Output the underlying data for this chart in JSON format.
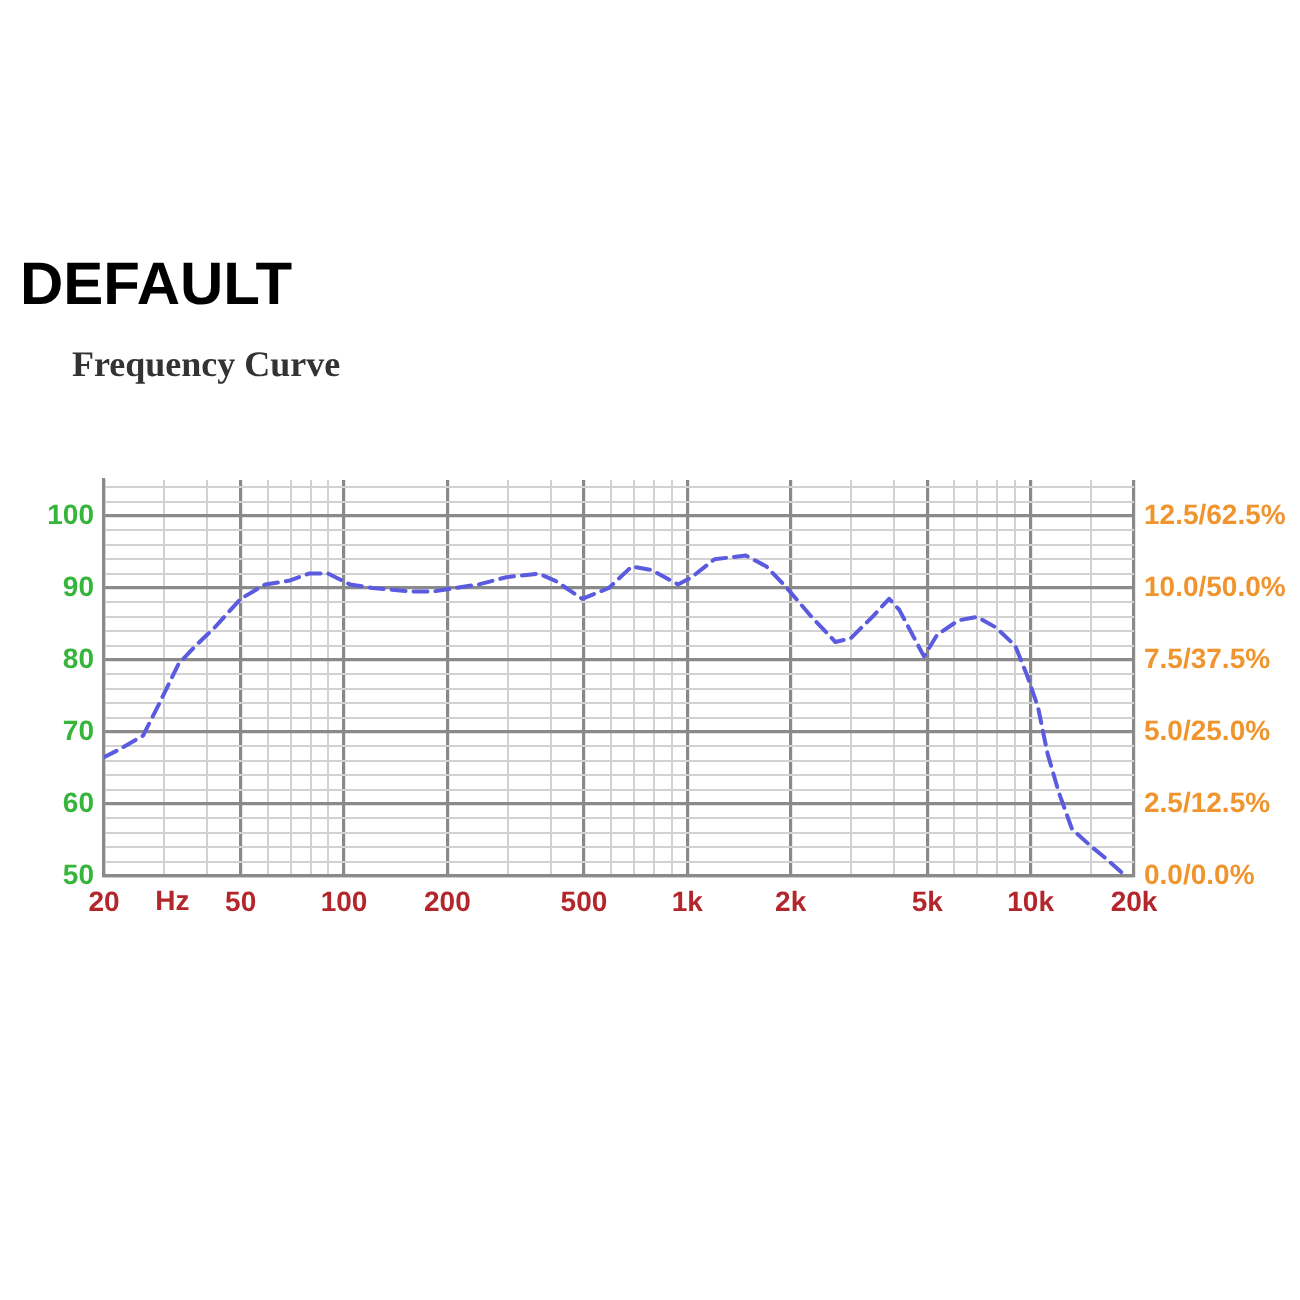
{
  "chart_data": {
    "type": "line",
    "title": "Frequency Curve",
    "annotations": [
      "DEFAULT"
    ],
    "xlabel": "Hz",
    "x": [
      20,
      22,
      26,
      29,
      33,
      37,
      42,
      50,
      59,
      69,
      79,
      90,
      104,
      121,
      158,
      181,
      211,
      247,
      297,
      369,
      413,
      494,
      591,
      689,
      787,
      940,
      1030,
      1200,
      1480,
      1700,
      1950,
      2300,
      2700,
      2990,
      3460,
      3870,
      4140,
      4890,
      5340,
      6160,
      6980,
      7930,
      9010,
      9740,
      10500,
      11200,
      12100,
      13200,
      15100,
      16500,
      18400
    ],
    "series": [
      {
        "color": "#5b5be0",
        "values": [
          66.5,
          67.5,
          69.5,
          74,
          79.5,
          82,
          84.5,
          88.5,
          90.5,
          91,
          92,
          92,
          90.5,
          90,
          89.5,
          89.5,
          90,
          90.5,
          91.5,
          92,
          91,
          88.5,
          90,
          93,
          92.5,
          90.5,
          91.5,
          94,
          94.5,
          93,
          90,
          86,
          82.5,
          83,
          86,
          88.5,
          87,
          80.5,
          83.5,
          85.5,
          86,
          84.5,
          82,
          78,
          73.5,
          67,
          61.5,
          56.5,
          54,
          52.5,
          50.5
        ]
      }
    ],
    "log": "x",
    "xlim": [
      20,
      20000
    ],
    "xticks": [
      20,
      {
        "value": 30,
        "label": null
      },
      {
        "value": 40,
        "label": null
      },
      50,
      {
        "value": 60,
        "label": null
      },
      {
        "value": 70,
        "label": null
      },
      {
        "value": 80,
        "label": null
      },
      {
        "value": 90,
        "label": null
      },
      100,
      200,
      {
        "value": 300,
        "label": null
      },
      {
        "value": 400,
        "label": null
      },
      500,
      {
        "value": 600,
        "label": null
      },
      {
        "value": 700,
        "label": null
      },
      {
        "value": 800,
        "label": null
      },
      {
        "value": 900,
        "label": null
      },
      {
        "value": 1000,
        "label": "1k"
      },
      {
        "value": 2000,
        "label": "2k"
      },
      {
        "value": 3000,
        "label": null
      },
      {
        "value": 4000,
        "label": null
      },
      {
        "value": 5000,
        "label": "5k"
      },
      {
        "value": 6000,
        "label": null
      },
      {
        "value": 7000,
        "label": null
      },
      {
        "value": 8000,
        "label": null
      },
      {
        "value": 9000,
        "label": null
      },
      {
        "value": 10000,
        "label": "10k"
      },
      {
        "value": 15000,
        "label": null
      },
      {
        "value": 20000,
        "label": "20k"
      }
    ],
    "ylim": [
      50,
      105
    ],
    "yticks": [
      50,
      {
        "value": 52,
        "label": null
      },
      {
        "value": 54,
        "label": null
      },
      {
        "value": 56,
        "label": null
      },
      {
        "value": 58,
        "label": null
      },
      60,
      {
        "value": 62,
        "label": null
      },
      {
        "value": 64,
        "label": null
      },
      {
        "value": 66,
        "label": null
      },
      {
        "value": 68,
        "label": null
      },
      70,
      {
        "value": 72,
        "label": null
      },
      {
        "value": 74,
        "label": null
      },
      {
        "value": 76,
        "label": null
      },
      {
        "value": 78,
        "label": null
      },
      80,
      {
        "value": 82,
        "label": null
      },
      {
        "value": 84,
        "label": null
      },
      {
        "value": 86,
        "label": null
      },
      {
        "value": 88,
        "label": null
      },
      90,
      {
        "value": 92,
        "label": null
      },
      {
        "value": 94,
        "label": null
      },
      {
        "value": 96,
        "label": null
      },
      {
        "value": 98,
        "label": null
      },
      100,
      {
        "value": 102,
        "label": null
      },
      {
        "value": 104,
        "label": null
      }
    ],
    "y2_categories": [
      null,
      "12.5/62.5%",
      null,
      "10.0/50.0%",
      null,
      "7.5/37.5%",
      null,
      "5.0/25.0%",
      null,
      "2.5/12.5%",
      null,
      "0.0/0.0%"
    ],
    "grid": true,
    "legend": false,
    "marker": "none",
    "line_style": "dashed"
  }
}
